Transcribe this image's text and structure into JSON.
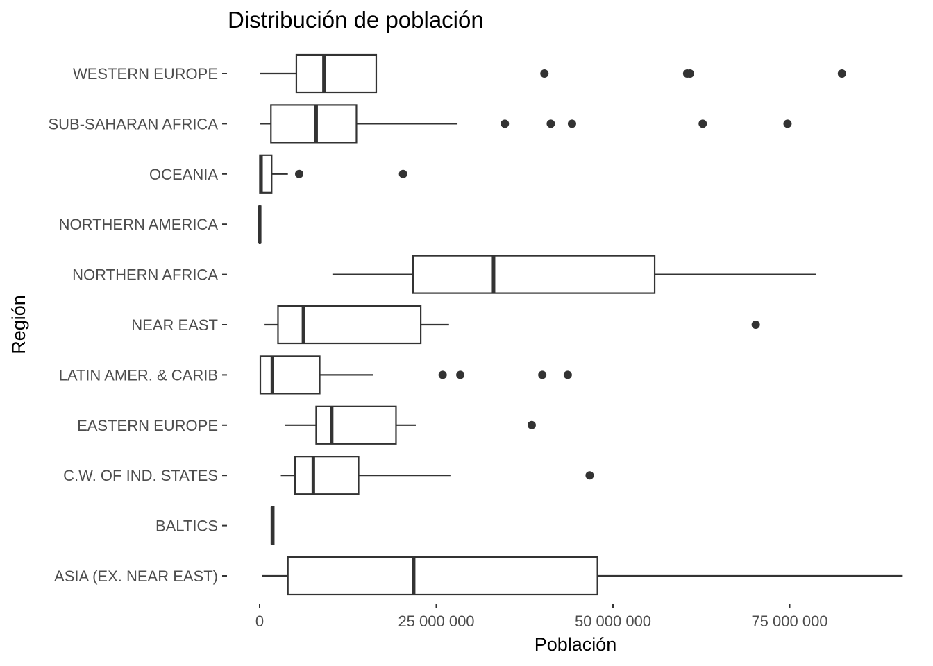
{
  "chart_data": {
    "type": "boxplot",
    "title": "Distribución de población",
    "xlabel": "Población",
    "ylabel": "Región",
    "xlim": [
      -1500000,
      91000000
    ],
    "grid": false,
    "x_ticks": [
      {
        "value": 0,
        "label": "0"
      },
      {
        "value": 25000000,
        "label": "25 000 000"
      },
      {
        "value": 50000000,
        "label": "50 000 000"
      },
      {
        "value": 75000000,
        "label": "75 000 000"
      }
    ],
    "categories": [
      "WESTERN EUROPE",
      "SUB-SAHARAN AFRICA",
      "OCEANIA",
      "NORTHERN AMERICA",
      "NORTHERN AFRICA",
      "NEAR EAST",
      "LATIN AMER. & CARIB",
      "EASTERN EUROPE",
      "C.W. OF IND. STATES",
      "BALTICS",
      "ASIA (EX. NEAR EAST)"
    ],
    "boxes": [
      {
        "region": "WESTERN EUROPE",
        "min": 30000,
        "q1": 5200000,
        "median": 9100000,
        "q3": 16500000,
        "max": 16500000,
        "outliers": [
          40300000,
          60500000,
          60900000,
          82400000
        ]
      },
      {
        "region": "SUB-SAHARAN AFRICA",
        "min": 100000,
        "q1": 1600000,
        "median": 8000000,
        "q3": 13700000,
        "max": 28000000,
        "outliers": [
          34700000,
          41200000,
          44200000,
          62700000,
          74700000
        ]
      },
      {
        "region": "OCEANIA",
        "min": 10000,
        "q1": 40000,
        "median": 200000,
        "q3": 1700000,
        "max": 4000000,
        "outliers": [
          5600000,
          20300000
        ]
      },
      {
        "region": "NORTHERN AMERICA",
        "min": 10000,
        "q1": 10000,
        "median": 10000,
        "q3": 10000,
        "max": 10000,
        "outliers": []
      },
      {
        "region": "NORTHERN AFRICA",
        "min": 10300000,
        "q1": 21700000,
        "median": 33100000,
        "q3": 55900000,
        "max": 78700000,
        "outliers": []
      },
      {
        "region": "NEAR EAST",
        "min": 700000,
        "q1": 2600000,
        "median": 6200000,
        "q3": 22800000,
        "max": 26800000,
        "outliers": [
          70200000
        ]
      },
      {
        "region": "LATIN AMER. & CARIB",
        "min": 10000,
        "q1": 100000,
        "median": 1800000,
        "q3": 8500000,
        "max": 16100000,
        "outliers": [
          25900000,
          28400000,
          40000000,
          43600000
        ]
      },
      {
        "region": "EASTERN EUROPE",
        "min": 3600000,
        "q1": 8000000,
        "median": 10200000,
        "q3": 19300000,
        "max": 22100000,
        "outliers": [
          38500000
        ]
      },
      {
        "region": "C.W. OF IND. STATES",
        "min": 3000000,
        "q1": 5000000,
        "median": 7600000,
        "q3": 14000000,
        "max": 27000000,
        "outliers": [
          46700000
        ]
      },
      {
        "region": "BALTICS",
        "min": 1700000,
        "q1": 1700000,
        "median": 1800000,
        "q3": 2000000,
        "max": 2000000,
        "outliers": []
      },
      {
        "region": "ASIA (EX. NEAR EAST)",
        "min": 300000,
        "q1": 4000000,
        "median": 21800000,
        "q3": 47800000,
        "max": 91000000,
        "outliers": []
      }
    ]
  }
}
